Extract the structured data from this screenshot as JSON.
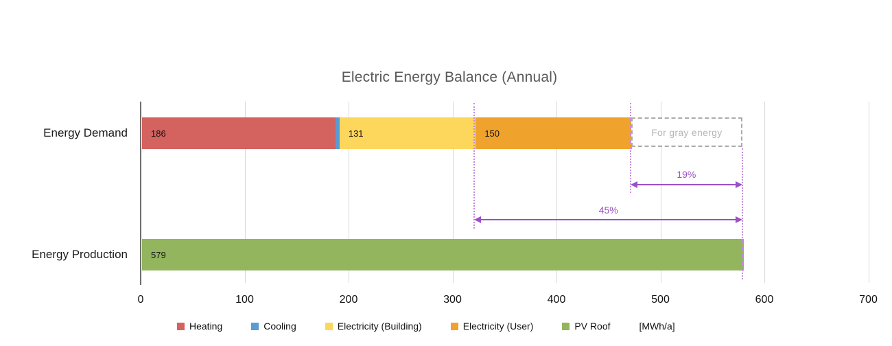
{
  "chart_data": {
    "type": "bar",
    "orientation": "horizontal",
    "title": "Electric Energy Balance (Annual)",
    "unit_label": "[MWh/a]",
    "xlim": [
      0,
      700
    ],
    "x_ticks": [
      0,
      100,
      200,
      300,
      400,
      500,
      600,
      700
    ],
    "grid": true,
    "legend_position": "bottom",
    "categories": [
      "Energy Demand",
      "Energy Production"
    ],
    "rows": [
      {
        "category": "Energy Demand",
        "segments": [
          {
            "name": "Heating",
            "value": 186,
            "label": "186",
            "color_key": "heating"
          },
          {
            "name": "Cooling",
            "value": 4,
            "label": "",
            "color_key": "cooling"
          },
          {
            "name": "Electricity (Building)",
            "value": 131,
            "label": "131",
            "color_key": "electricity_building"
          },
          {
            "name": "Electricity (User)",
            "value": 150,
            "label": "150",
            "color_key": "electricity_user"
          }
        ],
        "ghost_box": {
          "label": "For gray energy",
          "from": 471,
          "to": 579
        }
      },
      {
        "category": "Energy Production",
        "segments": [
          {
            "name": "PV Roof",
            "value": 579,
            "label": "579",
            "color_key": "pv_roof"
          }
        ]
      }
    ],
    "annotations": {
      "span_arrows": [
        {
          "label": "19%",
          "from": 471,
          "to": 579
        },
        {
          "label": "45%",
          "from": 321,
          "to": 579
        }
      ],
      "guide_values": [
        321,
        471,
        579
      ]
    }
  },
  "colors": {
    "heating": "#d4625f",
    "cooling": "#5b9bd5",
    "electricity_building": "#fdd65c",
    "electricity_user": "#efa32c",
    "pv_roof": "#92b55e",
    "annotation_purple": "#9b50c6",
    "guide_purple": "#c38be0",
    "ghost_text": "#b5b5b5",
    "ghost_border": "#ababab",
    "title_gray": "#595959",
    "gridline": "#d9d9d9",
    "axis": "#6e6e6e"
  },
  "legend": {
    "items": [
      {
        "label": "Heating",
        "swatch": "heating"
      },
      {
        "label": "Cooling",
        "swatch": "cooling"
      },
      {
        "label": "Electricity (Building)",
        "swatch": "electricity_building"
      },
      {
        "label": "Electricity (User)",
        "swatch": "electricity_user"
      },
      {
        "label": "PV Roof",
        "swatch": "pv_roof"
      },
      {
        "label": "[MWh/a]",
        "swatch": null
      }
    ]
  }
}
